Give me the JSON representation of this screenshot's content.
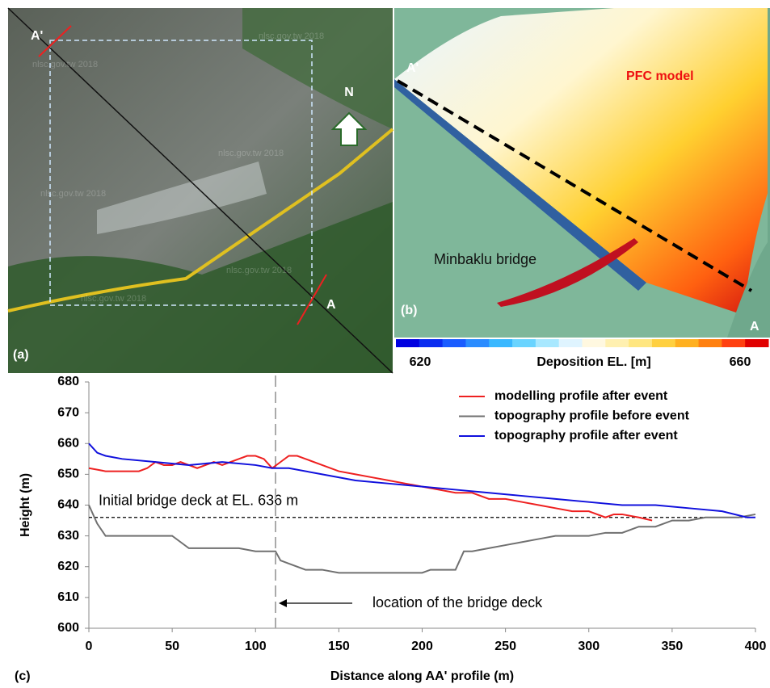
{
  "panels": {
    "a": {
      "label": "(a)",
      "point_a": "A",
      "point_a_prime": "A'",
      "north": "N",
      "watermarks": [
        "nlsc.gov.tw 2018",
        "nlsc.gov.tw 2018",
        "nlsc.gov.tw 2018",
        "nlsc.gov.tw 2018",
        "nlsc.gov.tw 2018",
        "nlsc.gov.tw 2018"
      ]
    },
    "b": {
      "label": "(b)",
      "point_a": "A",
      "point_a_prime": "A'",
      "title": "PFC model",
      "bridge": "Minbaklu bridge",
      "colorbar": {
        "label": "Deposition EL. [m]",
        "lim": [
          620,
          660
        ],
        "ticks": [
          620,
          660
        ],
        "colors": [
          "#0000e0",
          "#0a2cf0",
          "#1a5cff",
          "#2a8cff",
          "#3ab8ff",
          "#6ad4ff",
          "#a8e8ff",
          "#dff4ff",
          "#fff8e0",
          "#fff0b0",
          "#ffe680",
          "#ffd040",
          "#ffb020",
          "#ff8010",
          "#ff4010",
          "#e00000"
        ]
      }
    }
  },
  "chart_data": {
    "type": "line",
    "label": "(c)",
    "x_label": "Distance along AA' profile (m)",
    "y_label": "Height (m)",
    "xlim": [
      0,
      400
    ],
    "xticks": [
      0,
      50,
      100,
      150,
      200,
      250,
      300,
      350,
      400
    ],
    "ylim": [
      600,
      680
    ],
    "yticks": [
      600,
      610,
      620,
      630,
      640,
      650,
      660,
      670,
      680
    ],
    "hline": {
      "value": 636,
      "text": "Initial bridge deck at EL. 636 m"
    },
    "vline": {
      "value": 112,
      "text": "location of the bridge deck"
    },
    "series": [
      {
        "name": "modelling profile after event",
        "color": "#ee2020",
        "x": [
          0,
          5,
          10,
          20,
          30,
          35,
          40,
          45,
          50,
          55,
          60,
          65,
          70,
          75,
          80,
          85,
          90,
          95,
          100,
          105,
          110,
          115,
          120,
          125,
          130,
          140,
          150,
          160,
          170,
          180,
          190,
          200,
          210,
          220,
          230,
          240,
          250,
          260,
          270,
          280,
          290,
          300,
          310,
          315,
          320,
          330,
          338
        ],
        "values": [
          652,
          651.5,
          651,
          651,
          651,
          652,
          654,
          653,
          653,
          654,
          653,
          652,
          653,
          654,
          653,
          654,
          655,
          656,
          656,
          655,
          652,
          654,
          656,
          656,
          655,
          653,
          651,
          650,
          649,
          648,
          647,
          646,
          645,
          644,
          644,
          642,
          642,
          641,
          640,
          639,
          638,
          638,
          636,
          637,
          637,
          636,
          635
        ]
      },
      {
        "name": "topography profile before event",
        "color": "#707070",
        "x": [
          0,
          5,
          10,
          20,
          30,
          40,
          50,
          55,
          60,
          70,
          80,
          90,
          100,
          110,
          112,
          115,
          120,
          130,
          140,
          150,
          160,
          170,
          180,
          190,
          200,
          205,
          210,
          220,
          225,
          230,
          240,
          250,
          260,
          270,
          280,
          290,
          300,
          310,
          320,
          330,
          340,
          350,
          360,
          370,
          380,
          390,
          400
        ],
        "values": [
          640,
          634,
          630,
          630,
          630,
          630,
          630,
          628,
          626,
          626,
          626,
          626,
          625,
          625,
          625,
          622,
          621,
          619,
          619,
          618,
          618,
          618,
          618,
          618,
          618,
          619,
          619,
          619,
          625,
          625,
          626,
          627,
          628,
          629,
          630,
          630,
          630,
          631,
          631,
          633,
          633,
          635,
          635,
          636,
          636,
          636,
          637
        ]
      },
      {
        "name": "topography profile after event",
        "color": "#1010dd",
        "x": [
          0,
          5,
          10,
          20,
          40,
          60,
          80,
          100,
          110,
          120,
          140,
          160,
          180,
          200,
          220,
          240,
          260,
          280,
          300,
          320,
          340,
          360,
          380,
          395,
          400
        ],
        "values": [
          660,
          657,
          656,
          655,
          654,
          653,
          654,
          653,
          652,
          652,
          650,
          648,
          647,
          646,
          645,
          644,
          643,
          642,
          641,
          640,
          640,
          639,
          638,
          636,
          636
        ]
      }
    ]
  }
}
